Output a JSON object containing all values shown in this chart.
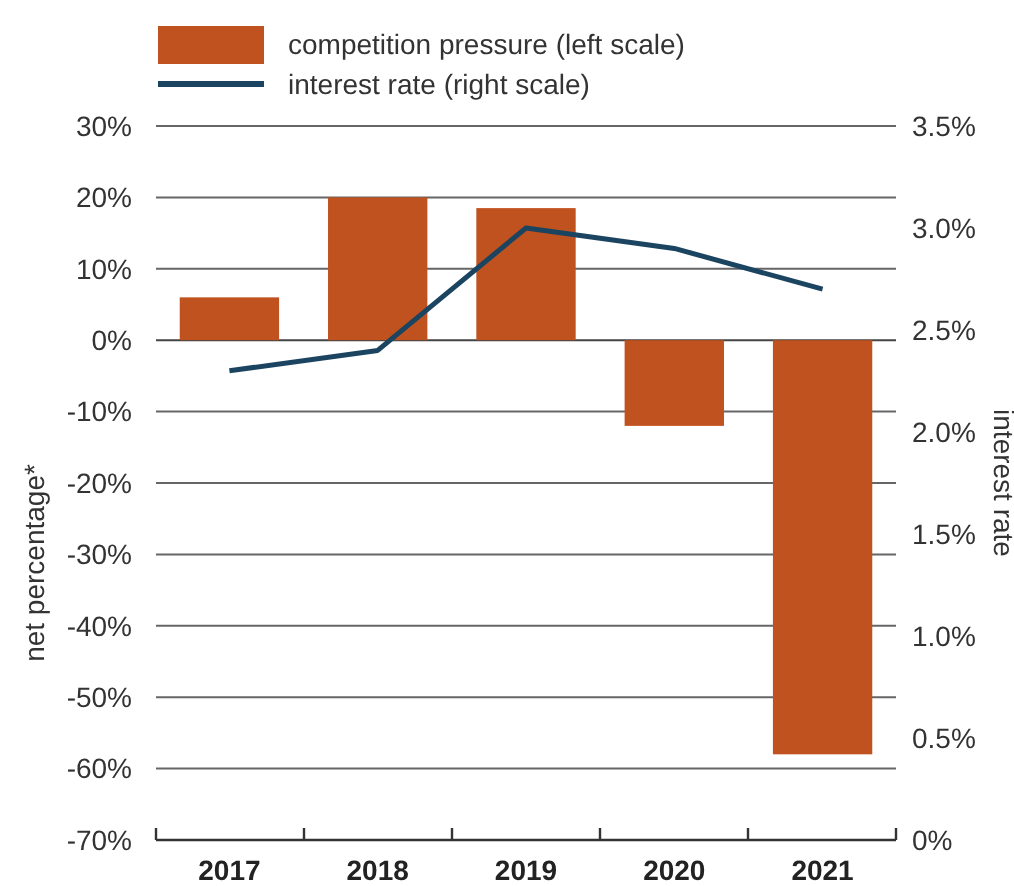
{
  "chart_data": {
    "type": "bar",
    "categories": [
      "2017",
      "2018",
      "2019",
      "2020",
      "2021"
    ],
    "series": [
      {
        "name": "competition pressure (left scale)",
        "color": "#c0521f",
        "values": [
          6,
          20,
          18.5,
          -12,
          -58
        ]
      },
      {
        "name": "interest rate (right scale)",
        "type": "line",
        "axis": "y2",
        "color": "#1b4461",
        "values": [
          2.3,
          2.4,
          3.0,
          2.9,
          2.7
        ]
      }
    ],
    "ylabel": "net percentage*",
    "y2label": "interest rate",
    "ylim": [
      -70,
      30
    ],
    "yticks": [
      {
        "value": 30,
        "label": "30%"
      },
      {
        "value": 20,
        "label": "20%"
      },
      {
        "value": 10,
        "label": "10%"
      },
      {
        "value": 0,
        "label": "0%"
      },
      {
        "value": -10,
        "label": "-10%"
      },
      {
        "value": -20,
        "label": "-20%"
      },
      {
        "value": -30,
        "label": "-30%"
      },
      {
        "value": -40,
        "label": "-40%"
      },
      {
        "value": -50,
        "label": "-50%"
      },
      {
        "value": -60,
        "label": "-60%"
      },
      {
        "value": -70,
        "label": "-70%"
      }
    ],
    "y2lim": [
      0,
      3.5
    ],
    "y2ticks": [
      {
        "value": 3.5,
        "label": "3.5%"
      },
      {
        "value": 3,
        "label": "3.0%"
      },
      {
        "value": 2.5,
        "label": "2.5%"
      },
      {
        "value": 2,
        "label": "2.0%"
      },
      {
        "value": 1.5,
        "label": "1.5%"
      },
      {
        "value": 1,
        "label": "1.0%"
      },
      {
        "value": 0.5,
        "label": "0.5%"
      },
      {
        "value": 0,
        "label": "0%"
      }
    ],
    "grid": "y",
    "legend": "top",
    "marker": "none",
    "line_style": "solid"
  }
}
